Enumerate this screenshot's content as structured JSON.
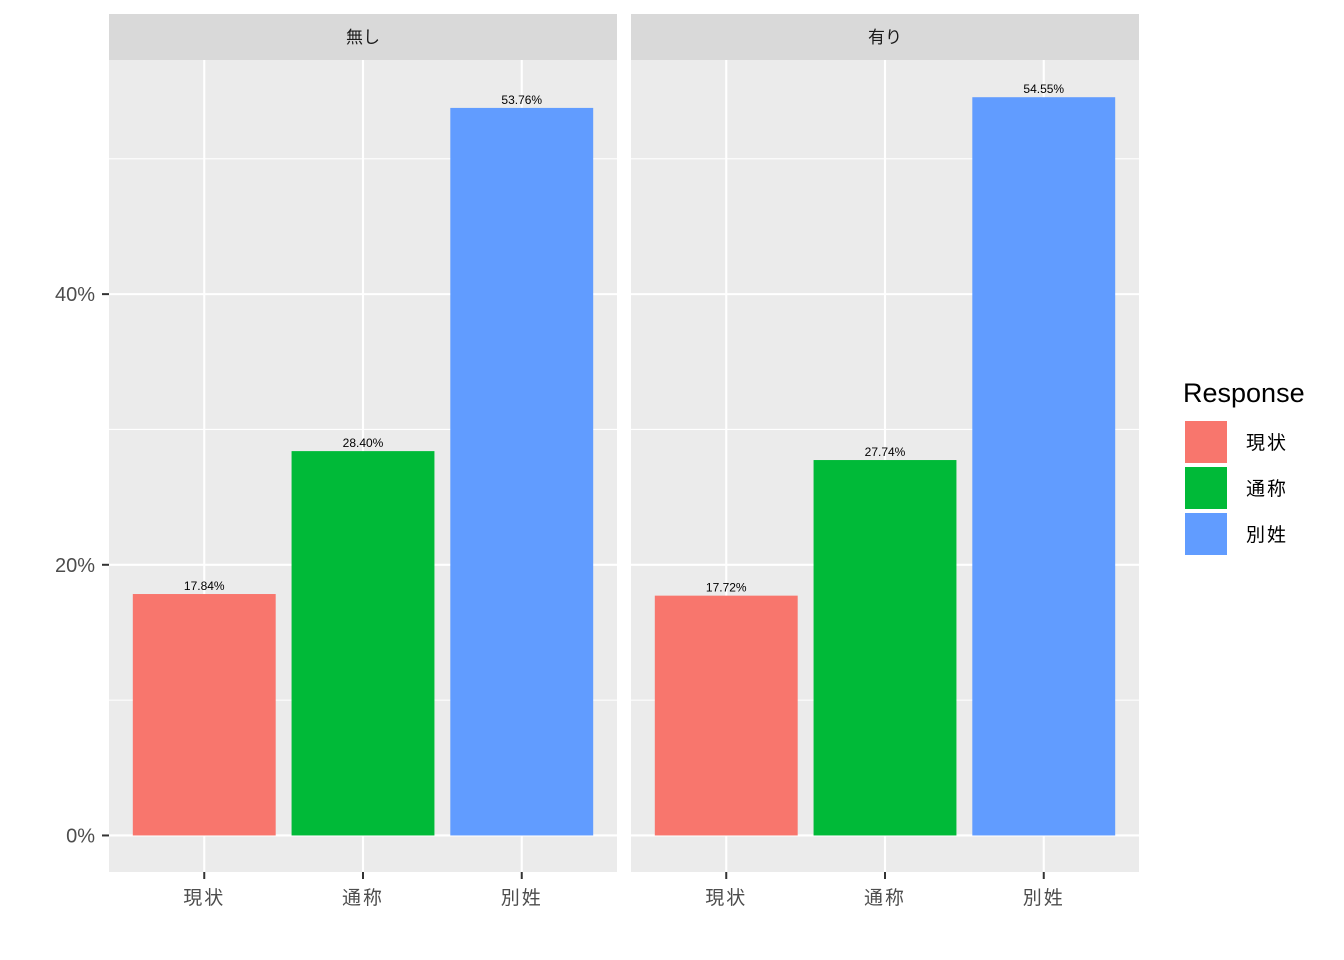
{
  "chart_data": {
    "type": "bar",
    "facets": [
      "無し",
      "有り"
    ],
    "categories": [
      "現状",
      "通称",
      "別姓"
    ],
    "series": [
      {
        "facet": "無し",
        "values": [
          17.84,
          28.4,
          53.76
        ],
        "labels": [
          "17.84%",
          "28.40%",
          "53.76%"
        ]
      },
      {
        "facet": "有り",
        "values": [
          17.72,
          27.74,
          54.55
        ],
        "labels": [
          "17.72%",
          "27.74%",
          "54.55%"
        ]
      }
    ],
    "colors": [
      "#F8766D",
      "#00BA38",
      "#619CFF"
    ],
    "ylim": [
      -2.7,
      57.3
    ],
    "yticks": [
      0,
      20,
      40
    ],
    "ytick_labels": [
      "0%",
      "20%",
      "40%"
    ],
    "yminor": [
      10,
      30,
      50
    ],
    "grid": true,
    "legend": {
      "title": "Response",
      "entries": [
        "現状",
        "通称",
        "別姓"
      ],
      "placement": "right"
    }
  }
}
